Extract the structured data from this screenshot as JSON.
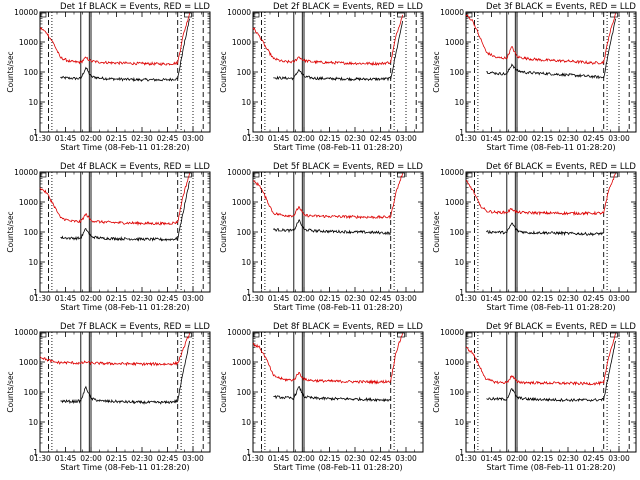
{
  "figure": {
    "ylabel": "Counts/sec",
    "xlabel": "Start Time (08-Feb-11 01:28:20)",
    "xtick_labels": [
      "01:30",
      "01:45",
      "02:00",
      "02:15",
      "02:30",
      "02:45",
      "03:00"
    ],
    "ytick_labels": [
      "1",
      "10",
      "100",
      "1000",
      "10000"
    ],
    "colors": {
      "events": "#000000",
      "lld": "#dd0000",
      "axes": "#000000",
      "background": "#ffffff"
    }
  },
  "chart_data": [
    {
      "type": "line",
      "title": "Det 1f BLACK = Events, RED = LLD",
      "xlabel": "Start Time (08-Feb-11 01:28:20)",
      "ylabel": "Counts/sec",
      "xlim": [
        "01:30",
        "03:10"
      ],
      "ylim": [
        1,
        10000
      ],
      "yscale": "log",
      "xticks": [
        "01:30",
        "01:45",
        "02:00",
        "02:15",
        "02:30",
        "02:45",
        "03:00"
      ],
      "yticks": [
        1,
        10,
        100,
        1000,
        10000
      ],
      "series": [
        {
          "name": "Events",
          "color": "#000000",
          "x": [
            "01:36",
            "01:42",
            "01:48",
            "01:54",
            "01:57",
            "02:00",
            "02:06",
            "02:15",
            "02:30",
            "02:45",
            "02:51",
            "02:54",
            "02:58"
          ],
          "y": [
            null,
            65,
            62,
            60,
            140,
            70,
            62,
            58,
            55,
            55,
            60,
            500,
            6000
          ]
        },
        {
          "name": "LLD",
          "color": "#dd0000",
          "x": [
            "01:30",
            "01:34",
            "01:38",
            "01:42",
            "01:48",
            "01:54",
            "01:57",
            "02:00",
            "02:06",
            "02:15",
            "02:30",
            "02:45",
            "02:51",
            "02:54",
            "02:58"
          ],
          "y": [
            3000,
            2000,
            900,
            300,
            220,
            210,
            300,
            230,
            210,
            200,
            190,
            185,
            200,
            1500,
            9000
          ]
        }
      ],
      "vlines": {
        "solid": [
          "01:54",
          "01:59",
          "02:00"
        ],
        "dashed": [
          "01:35",
          "02:51",
          "03:06"
        ],
        "dotted": [
          "01:37",
          "02:53",
          "03:00"
        ]
      }
    },
    {
      "type": "line",
      "title": "Det 2f BLACK = Events, RED = LLD",
      "xlabel": "Start Time (08-Feb-11 01:28:20)",
      "ylabel": "Counts/sec",
      "xlim": [
        "01:30",
        "03:10"
      ],
      "ylim": [
        1,
        10000
      ],
      "yscale": "log",
      "xticks": [
        "01:30",
        "01:45",
        "02:00",
        "02:15",
        "02:30",
        "02:45",
        "03:00"
      ],
      "yticks": [
        1,
        10,
        100,
        1000,
        10000
      ],
      "series": [
        {
          "name": "Events",
          "color": "#000000",
          "x": [
            "01:36",
            "01:42",
            "01:48",
            "01:54",
            "01:57",
            "02:00",
            "02:06",
            "02:15",
            "02:30",
            "02:45",
            "02:51",
            "02:54",
            "02:58"
          ],
          "y": [
            null,
            65,
            62,
            62,
            120,
            70,
            62,
            60,
            58,
            58,
            60,
            400,
            5000
          ]
        },
        {
          "name": "LLD",
          "color": "#dd0000",
          "x": [
            "01:30",
            "01:34",
            "01:38",
            "01:42",
            "01:48",
            "01:54",
            "01:57",
            "02:00",
            "02:06",
            "02:15",
            "02:30",
            "02:45",
            "02:51",
            "02:54",
            "02:58"
          ],
          "y": [
            3000,
            1500,
            600,
            280,
            220,
            215,
            320,
            240,
            215,
            205,
            195,
            190,
            210,
            1500,
            8000
          ]
        }
      ],
      "vlines": {
        "solid": [
          "01:54",
          "01:59",
          "02:00"
        ],
        "dashed": [
          "01:35",
          "02:51",
          "03:06"
        ],
        "dotted": [
          "01:37",
          "02:53",
          "03:00"
        ]
      }
    },
    {
      "type": "line",
      "title": "Det 3f BLACK = Events, RED = LLD",
      "xlabel": "Start Time (08-Feb-11 01:28:20)",
      "ylabel": "Counts/sec",
      "xlim": [
        "01:30",
        "03:10"
      ],
      "ylim": [
        1,
        10000
      ],
      "yscale": "log",
      "xticks": [
        "01:30",
        "01:45",
        "02:00",
        "02:15",
        "02:30",
        "02:45",
        "03:00"
      ],
      "yticks": [
        1,
        10,
        100,
        1000,
        10000
      ],
      "series": [
        {
          "name": "Events",
          "color": "#000000",
          "x": [
            "01:36",
            "01:42",
            "01:48",
            "01:54",
            "01:57",
            "02:00",
            "02:06",
            "02:15",
            "02:30",
            "02:45",
            "02:51",
            "02:54",
            "02:58"
          ],
          "y": [
            null,
            100,
            90,
            85,
            180,
            110,
            95,
            90,
            80,
            70,
            65,
            500,
            6000
          ]
        },
        {
          "name": "LLD",
          "color": "#dd0000",
          "x": [
            "01:30",
            "01:34",
            "01:38",
            "01:42",
            "01:48",
            "01:54",
            "01:57",
            "02:00",
            "02:06",
            "02:15",
            "02:30",
            "02:45",
            "02:51",
            "02:54",
            "02:58"
          ],
          "y": [
            8000,
            5000,
            1500,
            450,
            300,
            290,
            700,
            320,
            280,
            250,
            230,
            200,
            210,
            1500,
            9000
          ]
        }
      ],
      "vlines": {
        "solid": [
          "01:54",
          "01:59",
          "02:00"
        ],
        "dashed": [
          "01:35",
          "02:51",
          "03:06"
        ],
        "dotted": [
          "01:37",
          "02:53",
          "03:00"
        ]
      }
    },
    {
      "type": "line",
      "title": "Det 4f BLACK = Events, RED = LLD",
      "xlabel": "Start Time (08-Feb-11 01:28:20)",
      "ylabel": "Counts/sec",
      "xlim": [
        "01:30",
        "03:10"
      ],
      "ylim": [
        1,
        10000
      ],
      "yscale": "log",
      "xticks": [
        "01:30",
        "01:45",
        "02:00",
        "02:15",
        "02:30",
        "02:45",
        "03:00"
      ],
      "yticks": [
        1,
        10,
        100,
        1000,
        10000
      ],
      "series": [
        {
          "name": "Events",
          "color": "#000000",
          "x": [
            "01:36",
            "01:42",
            "01:48",
            "01:54",
            "01:57",
            "02:00",
            "02:06",
            "02:15",
            "02:30",
            "02:45",
            "02:51",
            "02:54",
            "02:58"
          ],
          "y": [
            null,
            65,
            62,
            62,
            130,
            70,
            62,
            60,
            58,
            56,
            60,
            400,
            5000
          ]
        },
        {
          "name": "LLD",
          "color": "#dd0000",
          "x": [
            "01:30",
            "01:34",
            "01:38",
            "01:42",
            "01:48",
            "01:54",
            "01:57",
            "02:00",
            "02:06",
            "02:15",
            "02:30",
            "02:45",
            "02:51",
            "02:54",
            "02:58"
          ],
          "y": [
            3000,
            2000,
            800,
            300,
            230,
            220,
            400,
            240,
            215,
            205,
            195,
            190,
            210,
            1500,
            9000
          ]
        }
      ],
      "vlines": {
        "solid": [
          "01:54",
          "01:59",
          "02:00"
        ],
        "dashed": [
          "01:35",
          "02:51",
          "03:06"
        ],
        "dotted": [
          "01:37",
          "02:53",
          "03:00"
        ]
      }
    },
    {
      "type": "line",
      "title": "Det 5f BLACK = Events, RED = LLD",
      "xlabel": "Start Time (08-Feb-11 01:28:20)",
      "ylabel": "Counts/sec",
      "xlim": [
        "01:30",
        "03:10"
      ],
      "ylim": [
        1,
        10000
      ],
      "yscale": "log",
      "xticks": [
        "01:30",
        "01:45",
        "02:00",
        "02:15",
        "02:30",
        "02:45",
        "03:00"
      ],
      "yticks": [
        1,
        10,
        100,
        1000,
        10000
      ],
      "series": [
        {
          "name": "Events",
          "color": "#000000",
          "x": [
            "01:42",
            "01:48",
            "01:54",
            "01:57",
            "02:00",
            "02:06",
            "02:15",
            "02:30",
            "02:45",
            "02:51",
            "02:54",
            "02:55"
          ],
          "y": [
            120,
            115,
            110,
            250,
            120,
            110,
            105,
            100,
            95,
            90,
            null,
            5
          ]
        },
        {
          "name": "LLD",
          "color": "#dd0000",
          "x": [
            "01:30",
            "01:34",
            "01:38",
            "01:42",
            "01:48",
            "01:54",
            "01:57",
            "02:00",
            "02:06",
            "02:15",
            "02:30",
            "02:45",
            "02:51",
            "02:54",
            "02:58"
          ],
          "y": [
            5000,
            3500,
            1200,
            420,
            360,
            350,
            700,
            360,
            340,
            330,
            320,
            310,
            320,
            2000,
            9000
          ]
        }
      ],
      "vlines": {
        "solid": [
          "01:54",
          "01:59",
          "02:00"
        ],
        "dashed": [
          "01:35",
          "02:51"
        ],
        "dotted": [
          "01:37",
          "02:53"
        ]
      }
    },
    {
      "type": "line",
      "title": "Det 6f BLACK = Events, RED = LLD",
      "xlabel": "Start Time (08-Feb-11 01:28:20)",
      "ylabel": "Counts/sec",
      "xlim": [
        "01:30",
        "03:10"
      ],
      "ylim": [
        1,
        10000
      ],
      "yscale": "log",
      "xticks": [
        "01:30",
        "01:45",
        "02:00",
        "02:15",
        "02:30",
        "02:45",
        "03:00"
      ],
      "yticks": [
        1,
        10,
        100,
        1000,
        10000
      ],
      "series": [
        {
          "name": "Events",
          "color": "#000000",
          "x": [
            "01:36",
            "01:42",
            "01:48",
            "01:54",
            "01:57",
            "02:00",
            "02:06",
            "02:15",
            "02:30",
            "02:45",
            "02:51",
            "02:54",
            "02:55"
          ],
          "y": [
            null,
            100,
            100,
            95,
            200,
            110,
            95,
            95,
            90,
            85,
            90,
            null,
            5
          ]
        },
        {
          "name": "LLD",
          "color": "#dd0000",
          "x": [
            "01:30",
            "01:34",
            "01:38",
            "01:42",
            "01:48",
            "01:54",
            "01:57",
            "02:00",
            "02:06",
            "02:15",
            "02:30",
            "02:45",
            "02:51",
            "02:54",
            "02:58"
          ],
          "y": [
            5000,
            2500,
            800,
            500,
            450,
            450,
            600,
            450,
            440,
            430,
            420,
            420,
            430,
            2500,
            9000
          ]
        }
      ],
      "vlines": {
        "solid": [
          "01:54",
          "01:59",
          "02:00"
        ],
        "dashed": [
          "01:35",
          "02:51"
        ],
        "dotted": [
          "01:37",
          "02:53"
        ]
      }
    },
    {
      "type": "line",
      "title": "Det 7f BLACK = Events, RED = LLD",
      "xlabel": "Start Time (08-Feb-11 01:28:20)",
      "ylabel": "Counts/sec",
      "xlim": [
        "01:30",
        "03:10"
      ],
      "ylim": [
        1,
        10000
      ],
      "yscale": "log",
      "xticks": [
        "01:30",
        "01:45",
        "02:00",
        "02:15",
        "02:30",
        "02:45",
        "03:00"
      ],
      "yticks": [
        1,
        10,
        100,
        1000,
        10000
      ],
      "series": [
        {
          "name": "Events",
          "color": "#000000",
          "x": [
            "01:36",
            "01:42",
            "01:48",
            "01:54",
            "01:57",
            "02:00",
            "02:06",
            "02:15",
            "02:30",
            "02:45",
            "02:51",
            "02:54",
            "02:58"
          ],
          "y": [
            null,
            50,
            48,
            50,
            150,
            60,
            50,
            48,
            45,
            45,
            50,
            400,
            5000
          ]
        },
        {
          "name": "LLD",
          "color": "#dd0000",
          "x": [
            "01:30",
            "01:34",
            "01:38",
            "01:42",
            "01:48",
            "01:54",
            "01:57",
            "02:00",
            "02:06",
            "02:15",
            "02:30",
            "02:45",
            "02:51",
            "02:54",
            "02:58"
          ],
          "y": [
            1500,
            1200,
            1000,
            950,
            950,
            900,
            1000,
            920,
            900,
            880,
            860,
            850,
            900,
            2500,
            9000
          ]
        }
      ],
      "vlines": {
        "solid": [
          "01:54",
          "01:59",
          "02:00"
        ],
        "dashed": [
          "01:35",
          "02:51",
          "03:06"
        ],
        "dotted": [
          "01:37",
          "02:53",
          "03:00"
        ]
      }
    },
    {
      "type": "line",
      "title": "Det 8f BLACK = Events, RED = LLD",
      "xlabel": "Start Time (08-Feb-11 01:28:20)",
      "ylabel": "Counts/sec",
      "xlim": [
        "01:30",
        "03:10"
      ],
      "ylim": [
        1,
        10000
      ],
      "yscale": "log",
      "xticks": [
        "01:30",
        "01:45",
        "02:00",
        "02:15",
        "02:30",
        "02:45",
        "03:00"
      ],
      "yticks": [
        1,
        10,
        100,
        1000,
        10000
      ],
      "series": [
        {
          "name": "Events",
          "color": "#000000",
          "x": [
            "01:42",
            "01:48",
            "01:54",
            "01:57",
            "02:00",
            "02:06",
            "02:15",
            "02:30",
            "02:45",
            "02:51",
            "02:54",
            "02:55"
          ],
          "y": [
            70,
            65,
            62,
            150,
            70,
            62,
            60,
            58,
            55,
            55,
            null,
            3
          ]
        },
        {
          "name": "LLD",
          "color": "#dd0000",
          "x": [
            "01:30",
            "01:34",
            "01:38",
            "01:42",
            "01:48",
            "01:54",
            "01:57",
            "02:00",
            "02:06",
            "02:15",
            "02:30",
            "02:45",
            "02:51",
            "02:54",
            "02:58"
          ],
          "y": [
            4000,
            3000,
            1200,
            350,
            260,
            250,
            450,
            260,
            240,
            230,
            220,
            215,
            230,
            2000,
            9000
          ]
        }
      ],
      "vlines": {
        "solid": [
          "01:54",
          "01:59",
          "02:00"
        ],
        "dashed": [
          "01:35",
          "02:51"
        ],
        "dotted": [
          "01:37",
          "02:53"
        ]
      }
    },
    {
      "type": "line",
      "title": "Det 9f BLACK = Events, RED = LLD",
      "xlabel": "Start Time (08-Feb-11 01:28:20)",
      "ylabel": "Counts/sec",
      "xlim": [
        "01:30",
        "03:10"
      ],
      "ylim": [
        1,
        10000
      ],
      "yscale": "log",
      "xticks": [
        "01:30",
        "01:45",
        "02:00",
        "02:15",
        "02:30",
        "02:45",
        "03:00"
      ],
      "yticks": [
        1,
        10,
        100,
        1000,
        10000
      ],
      "series": [
        {
          "name": "Events",
          "color": "#000000",
          "x": [
            "01:36",
            "01:42",
            "01:48",
            "01:54",
            "01:57",
            "02:00",
            "02:06",
            "02:15",
            "02:30",
            "02:45",
            "02:51",
            "02:54",
            "02:58"
          ],
          "y": [
            null,
            60,
            58,
            58,
            130,
            65,
            58,
            56,
            54,
            54,
            56,
            400,
            5000
          ]
        },
        {
          "name": "LLD",
          "color": "#dd0000",
          "x": [
            "01:30",
            "01:34",
            "01:38",
            "01:42",
            "01:48",
            "01:54",
            "01:57",
            "02:00",
            "02:06",
            "02:15",
            "02:30",
            "02:45",
            "02:51",
            "02:54",
            "02:58"
          ],
          "y": [
            3000,
            2000,
            700,
            260,
            210,
            205,
            350,
            215,
            205,
            200,
            195,
            190,
            200,
            1500,
            9000
          ]
        }
      ],
      "vlines": {
        "solid": [
          "01:54",
          "01:59",
          "02:00"
        ],
        "dashed": [
          "01:35",
          "02:51",
          "03:06"
        ],
        "dotted": [
          "01:37",
          "02:53",
          "03:00"
        ]
      }
    }
  ]
}
